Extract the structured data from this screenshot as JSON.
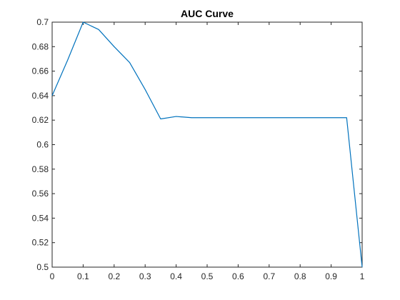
{
  "chart_data": {
    "type": "line",
    "title": "AUC Curve",
    "xlabel": "",
    "ylabel": "",
    "xlim": [
      0,
      1
    ],
    "ylim": [
      0.5,
      0.7
    ],
    "xticks": [
      0,
      0.1,
      0.2,
      0.3,
      0.4,
      0.5,
      0.6,
      0.7,
      0.8,
      0.9,
      1
    ],
    "xtick_labels": [
      "0",
      "0.1",
      "0.2",
      "0.3",
      "0.4",
      "0.5",
      "0.6",
      "0.7",
      "0.8",
      "0.9",
      "1"
    ],
    "yticks": [
      0.5,
      0.52,
      0.54,
      0.56,
      0.58,
      0.6,
      0.62,
      0.64,
      0.66,
      0.68,
      0.7
    ],
    "ytick_labels": [
      "0.5",
      "0.52",
      "0.54",
      "0.56",
      "0.58",
      "0.6",
      "0.62",
      "0.64",
      "0.66",
      "0.68",
      "0.7"
    ],
    "grid": false,
    "box": true,
    "line_color": "#0072BD",
    "series": [
      {
        "x": [
          0,
          0.05,
          0.1,
          0.15,
          0.2,
          0.25,
          0.3,
          0.35,
          0.4,
          0.45,
          0.5,
          0.55,
          0.6,
          0.65,
          0.7,
          0.75,
          0.8,
          0.85,
          0.9,
          0.95,
          1
        ],
        "y": [
          0.64,
          0.669,
          0.7,
          0.694,
          0.68,
          0.667,
          0.645,
          0.621,
          0.623,
          0.622,
          0.622,
          0.622,
          0.622,
          0.622,
          0.622,
          0.622,
          0.622,
          0.622,
          0.622,
          0.622,
          0.5
        ]
      }
    ]
  }
}
